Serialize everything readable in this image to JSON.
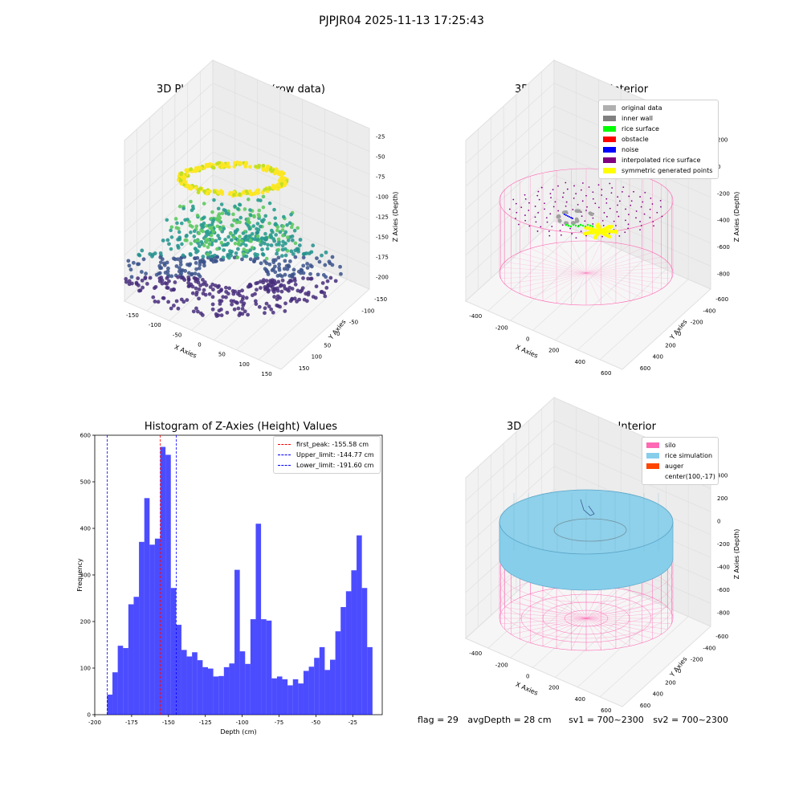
{
  "suptitle": "PJPJR04 2025-11-13 17:25:43",
  "panels": {
    "raw": {
      "title": "3D Plot of Silo Interior(row data)",
      "xlabel": "X Axies",
      "ylabel": "Y Axies",
      "zlabel": "Z Axies (Depth)",
      "xticks": [
        "-150",
        "-100",
        "-50",
        "0",
        "50",
        "100",
        "150"
      ],
      "yticks": [
        "150",
        "100",
        "50",
        "0",
        "-50",
        "-100",
        "-150"
      ],
      "zticks": [
        "-25",
        "-50",
        "-75",
        "-100",
        "-125",
        "-150",
        "-175",
        "-200"
      ]
    },
    "classify": {
      "title": "3D classify of Silo Interior",
      "xlabel": "X Axies",
      "ylabel": "Y Axies",
      "zlabel": "Z Axies (Depth)",
      "xticks": [
        "-400",
        "-200",
        "0",
        "200",
        "400",
        "600"
      ],
      "yticks": [
        "600",
        "400",
        "200",
        "0",
        "-200",
        "-400",
        "-600"
      ],
      "zticks": [
        "200",
        "0",
        "-200",
        "-400",
        "-600",
        "-800"
      ],
      "legend": [
        {
          "label": "original data",
          "color": "#b0b0b0"
        },
        {
          "label": "inner wall",
          "color": "#808080"
        },
        {
          "label": "rice surface",
          "color": "#00ff00"
        },
        {
          "label": "obstacle",
          "color": "#ff0000"
        },
        {
          "label": "noise",
          "color": "#0000ff"
        },
        {
          "label": "interpolated rice surface",
          "color": "#800080"
        },
        {
          "label": "symmetric generated points",
          "color": "#ffff00"
        }
      ]
    },
    "simulation": {
      "title": "3D simulation of Silo Interior",
      "xlabel": "X Axies",
      "ylabel": "Y Axies",
      "zlabel": "Z Axies (Depth)",
      "xticks": [
        "-400",
        "-200",
        "0",
        "200",
        "400",
        "600"
      ],
      "yticks": [
        "600",
        "400",
        "200",
        "0",
        "-200",
        "-400",
        "-600"
      ],
      "zticks": [
        "400",
        "200",
        "0",
        "-200",
        "-400",
        "-600",
        "-800"
      ],
      "legend": [
        {
          "label": "silo",
          "color": "#ff69b4"
        },
        {
          "label": "rice simulation",
          "color": "#87ceeb"
        },
        {
          "label": "auger",
          "color": "#ff4500"
        },
        {
          "label": "center(100,-17)",
          "color": ""
        }
      ]
    }
  },
  "chart_data": {
    "type": "bar",
    "title": "Histogram of Z-Axies (Height) Values",
    "xlabel": "Depth (cm)",
    "ylabel": "Frequency",
    "xlim": [
      -200,
      -5
    ],
    "ylim": [
      0,
      600
    ],
    "xticks": [
      -200,
      -175,
      -150,
      -125,
      -100,
      -75,
      -50,
      -25
    ],
    "yticks": [
      0,
      100,
      200,
      300,
      400,
      500,
      600
    ],
    "bin_start": -191.6,
    "bin_width": 3.6,
    "values": [
      43,
      91,
      148,
      143,
      237,
      253,
      371,
      465,
      365,
      378,
      575,
      558,
      272,
      193,
      139,
      125,
      134,
      117,
      102,
      99,
      82,
      83,
      102,
      110,
      311,
      136,
      109,
      205,
      410,
      205,
      202,
      78,
      82,
      76,
      63,
      76,
      67,
      94,
      103,
      122,
      145,
      96,
      118,
      179,
      231,
      265,
      310,
      385,
      272,
      145
    ],
    "bar_color": "#0000ff",
    "vlines": [
      {
        "label": "first_peak: -155.58 cm",
        "x": -155.58,
        "color": "#ff0000"
      },
      {
        "label": "Upper_limit: -144.77 cm",
        "x": -144.77,
        "color": "#0000ff"
      },
      {
        "label": "Lower_limit: -191.60 cm",
        "x": -191.6,
        "color": "#0000ff"
      }
    ],
    "legend_position": "top-right",
    "grid": false
  },
  "footer": {
    "flag": "flag = 29",
    "avg_depth": "avgDepth = 28 cm",
    "sv1": "sv1 = 700~2300",
    "sv2": "sv2 = 700~2300"
  }
}
